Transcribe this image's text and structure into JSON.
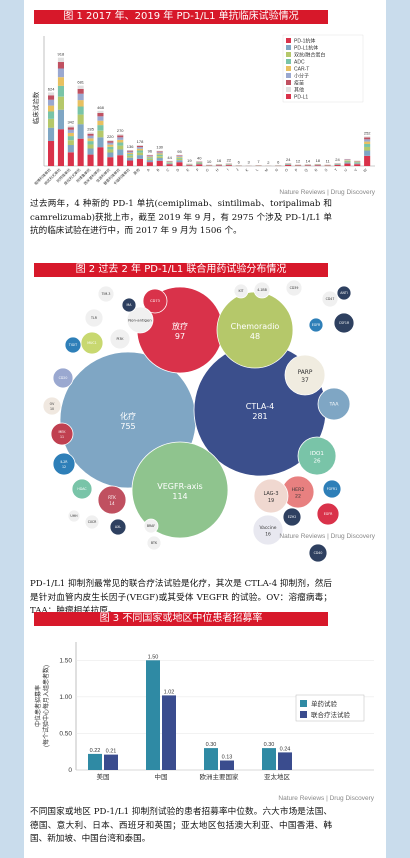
{
  "figure1": {
    "title": "图 1   2017 年、2019 年 PD-1/L1 单抗临床试验情况",
    "ylabel": "临床试验数",
    "credit": "Nature Reviews | Drug Discovery",
    "legend": [
      "PD-1抗体",
      "PD-L1抗体",
      "双抗/融合蛋白",
      "ADC",
      "CAR-T",
      "小分子",
      "疫苗",
      "其他",
      "PD-L1"
    ],
    "chart_data": {
      "type": "bar",
      "categories": [
        "帕博利珠单抗",
        "纳武利尤单抗",
        "阿特珠单抗",
        "度伐利尤单抗",
        "阿维鲁单抗",
        "西米普利单抗",
        "信迪利单抗",
        "替雷利珠单抗",
        "卡瑞利珠单抗",
        "其他",
        "A",
        "B",
        "C",
        "D",
        "E",
        "F",
        "G",
        "H",
        "I",
        "J",
        "K",
        "L",
        "M",
        "N",
        "O",
        "P",
        "Q",
        "R",
        "S",
        "T",
        "U",
        "V",
        "W"
      ],
      "values": [
        624,
        918,
        342,
        681,
        285,
        468,
        220,
        270,
        136,
        178,
        96,
        130,
        44,
        95,
        19,
        40,
        10,
        16,
        22,
        6,
        3,
        7,
        2,
        6,
        24,
        12,
        14,
        18,
        11,
        24,
        60,
        45,
        252
      ],
      "value_labels": [
        "624",
        "918",
        "342",
        "681",
        "285",
        "468",
        "220",
        "270",
        "136",
        "178",
        "96",
        "130",
        "44",
        "95",
        "19",
        "40",
        "10",
        "16",
        "22",
        "6",
        "3",
        "7",
        "2",
        "6",
        "24",
        "12",
        "14",
        "18",
        "11",
        "24",
        "",
        "",
        "252"
      ],
      "ylim": [
        0,
        1000
      ]
    }
  },
  "caption1": "过去两年，4 种新的 PD-1 单抗(cemiplimab、sintilimab、toripalimab 和 camrelizumab)获批上市，截至 2019 年 9 月，有 2975 个涉及 PD-1/L1 单抗的临床试验在进行中，而 2017 年 9 月为 1506 个。",
  "figure2": {
    "title": "图 2   过去 2 年 PD-1/L1 联合用药试验分布情况",
    "credit": "Nature Reviews | Drug Discovery",
    "bubbles": [
      {
        "label": "化疗",
        "value": "755",
        "color": "#7fa6c4"
      },
      {
        "label": "CTLA-4",
        "value": "281",
        "color": "#3b4f8c"
      },
      {
        "label": "放疗",
        "value": "97",
        "color": "#d9324a"
      },
      {
        "label": "Chemoradio",
        "value": "48",
        "color": "#b5c86a"
      },
      {
        "label": "VEGFR-axis",
        "value": "114",
        "color": "#8fc48e"
      },
      {
        "label": "PARP",
        "value": "37",
        "color": "#f0ece0"
      },
      {
        "label": "TAA",
        "value": "",
        "color": "#7fa6c4"
      },
      {
        "label": "IDO1",
        "value": "26",
        "color": "#79c4a8"
      },
      {
        "label": "HER2",
        "value": "22",
        "color": "#e88080"
      },
      {
        "label": "LAG-3",
        "value": "19",
        "color": "#f0d8d0"
      },
      {
        "label": "Vaccine",
        "value": "16",
        "color": "#e8e8f0"
      },
      {
        "label": "EGFR",
        "value": "",
        "color": "#d9324a"
      },
      {
        "label": "RTK",
        "value": "14",
        "color": "#c05060"
      },
      {
        "label": "MEK",
        "value": "11",
        "color": "#c04050"
      },
      {
        "label": "IL2R",
        "value": "12",
        "color": "#2e7fb8"
      },
      {
        "label": "HDAC",
        "value": "",
        "color": "#79c4a8"
      },
      {
        "label": "CD20",
        "value": "",
        "color": "#9aa8d0"
      },
      {
        "label": "OV",
        "value": "10",
        "color": "#f0e8e0"
      },
      {
        "label": "MUC1",
        "value": "",
        "color": "#c8d870"
      },
      {
        "label": "PI3K",
        "value": "",
        "color": "#f0f0f0"
      },
      {
        "label": "TLR",
        "value": "",
        "color": "#f0f0f0"
      },
      {
        "label": "CD73",
        "value": "",
        "color": "#d9324a"
      },
      {
        "label": "Non-antigen",
        "value": "",
        "color": "#f0f0f0"
      },
      {
        "label": "FGFR1",
        "value": "",
        "color": "#2e7fb8"
      },
      {
        "label": "AXL",
        "value": "",
        "color": "#2e4060"
      },
      {
        "label": "BTK",
        "value": "",
        "color": "#f0f0f0"
      },
      {
        "label": "BRAF",
        "value": "",
        "color": "#f0f0f0"
      },
      {
        "label": "CXCR",
        "value": "",
        "color": "#f0f0f0"
      },
      {
        "label": "CD40",
        "value": "",
        "color": "#2e4060"
      },
      {
        "label": "EZH2",
        "value": "",
        "color": "#2e4060"
      },
      {
        "label": "4-1BB",
        "value": "",
        "color": "#f0f0f0"
      },
      {
        "label": "CD39",
        "value": "",
        "color": "#f0f0f0"
      },
      {
        "label": "CD47",
        "value": "",
        "color": "#f0f0f0"
      },
      {
        "label": "TIGIT",
        "value": "",
        "color": "#2e7fb8"
      },
      {
        "label": "TIM-3",
        "value": "",
        "color": "#f0f0f0"
      },
      {
        "label": "CSF1R",
        "value": "",
        "color": "#2e4060"
      },
      {
        "label": "KIT",
        "value": "",
        "color": "#f0f0f0"
      },
      {
        "label": "EGFR",
        "value": "",
        "color": "#2e7fb8"
      },
      {
        "label": "ANTI",
        "value": "",
        "color": "#2e4060"
      },
      {
        "label": "UHH",
        "value": "",
        "color": "#f0f0f0"
      },
      {
        "label": "MA",
        "value": "",
        "color": "#2e4060"
      }
    ]
  },
  "caption2": "PD-1/L1 抑制剂最常见的联合疗法试验是化疗，其次是 CTLA-4 抑制剂，然后是针对血管内皮生长因子(VEGF)或其受体 VEGFR 的试验。OV：溶瘤病毒；TAA：肿瘤相关抗原。",
  "figure3": {
    "title": "图 3   不同国家或地区中位患者招募率",
    "ylabel": "中位患者招募率\n(每个试验中心每月入组患者数)",
    "credit": "Nature Reviews | Drug Discovery",
    "chart_data": {
      "type": "bar",
      "categories": [
        "美国",
        "中国",
        "欧洲主要国家",
        "亚太地区"
      ],
      "series": [
        {
          "name": "单药试验",
          "values": [
            0.22,
            1.5,
            0.3,
            0.3
          ],
          "color": "#2f8aa4"
        },
        {
          "name": "联合疗法试验",
          "values": [
            0.21,
            1.02,
            0.13,
            0.24
          ],
          "color": "#3a4c8e"
        }
      ],
      "value_labels": [
        [
          "0.22",
          "1.50",
          "0.30",
          "0.30"
        ],
        [
          "0.21",
          "1.02",
          "0.13",
          "0.24"
        ]
      ],
      "ylim": [
        0,
        1.75
      ],
      "yticks": [
        "0",
        "0.50",
        "1.00",
        "1.50"
      ]
    }
  },
  "caption3": "不同国家或地区 PD-1/L1 抑制剂试验的患者招募率中位数。六大市场是法国、德国、意大利、日本、西班牙和英国；亚太地区包括澳大利亚、中国香港、韩国、新加坡、中国台湾和泰国。"
}
